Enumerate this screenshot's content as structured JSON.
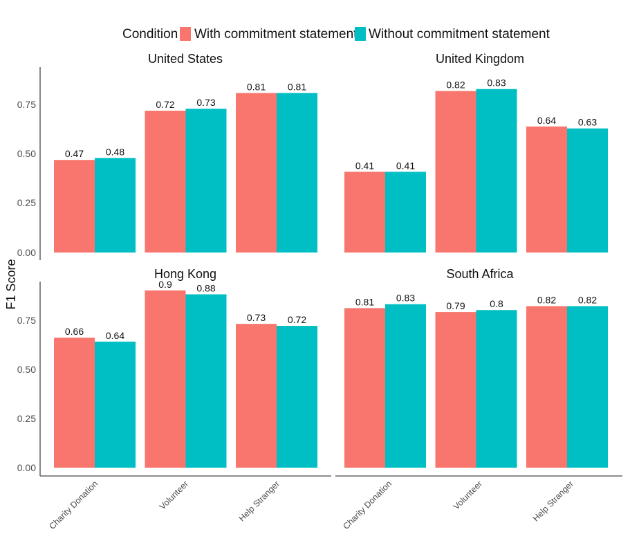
{
  "chart_data": {
    "type": "bar",
    "ylabel": "F1 Score",
    "xlabel": "",
    "ylim": [
      0,
      0.95
    ],
    "yticks": [
      "0.00",
      "0.25",
      "0.50",
      "0.75"
    ],
    "ytick_values": [
      0,
      0.25,
      0.5,
      0.75
    ],
    "categories": [
      "Charity Donation",
      "Volunteer",
      "Help Stranger"
    ],
    "legend": {
      "title": "Condition",
      "placement": "top",
      "entries": [
        {
          "name": "With commitment statement",
          "color": "#F8766D"
        },
        {
          "name": "Without commitment statement",
          "color": "#00BFC4"
        }
      ]
    },
    "panels": [
      {
        "title": "United States",
        "series": [
          {
            "name": "With commitment statement",
            "values": [
              0.47,
              0.72,
              0.81
            ],
            "labels": [
              "0.47",
              "0.72",
              "0.81"
            ]
          },
          {
            "name": "Without commitment statement",
            "values": [
              0.48,
              0.73,
              0.81
            ],
            "labels": [
              "0.48",
              "0.73",
              "0.81"
            ]
          }
        ]
      },
      {
        "title": "United Kingdom",
        "series": [
          {
            "name": "With commitment statement",
            "values": [
              0.41,
              0.82,
              0.64
            ],
            "labels": [
              "0.41",
              "0.82",
              "0.64"
            ]
          },
          {
            "name": "Without commitment statement",
            "values": [
              0.41,
              0.83,
              0.63
            ],
            "labels": [
              "0.41",
              "0.83",
              "0.63"
            ]
          }
        ]
      },
      {
        "title": "Hong Kong",
        "series": [
          {
            "name": "With commitment statement",
            "values": [
              0.66,
              0.9,
              0.73
            ],
            "labels": [
              "0.66",
              "0.9",
              "0.73"
            ]
          },
          {
            "name": "Without commitment statement",
            "values": [
              0.64,
              0.88,
              0.72
            ],
            "labels": [
              "0.64",
              "0.88",
              "0.72"
            ]
          }
        ]
      },
      {
        "title": "South Africa",
        "series": [
          {
            "name": "With commitment statement",
            "values": [
              0.81,
              0.79,
              0.82
            ],
            "labels": [
              "0.81",
              "0.79",
              "0.82"
            ]
          },
          {
            "name": "Without commitment statement",
            "values": [
              0.83,
              0.8,
              0.82
            ],
            "labels": [
              "0.83",
              "0.8",
              "0.82"
            ]
          }
        ]
      }
    ]
  }
}
